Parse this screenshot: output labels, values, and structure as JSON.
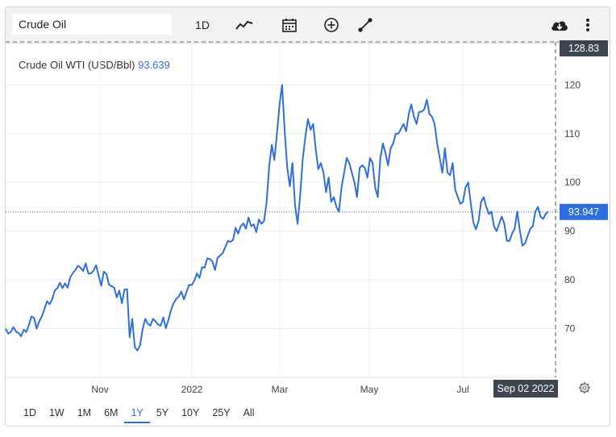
{
  "toolbar": {
    "symbol_value": "Crude Oil",
    "interval_label": "1D",
    "icons": [
      "line-chart-icon",
      "calendar-icon",
      "add-circle-icon",
      "draw-line-icon",
      "cloud-download-icon",
      "more-vertical-icon"
    ]
  },
  "title": {
    "name": "Crude Oil WTI (USD/Bbl)",
    "value": "93.639"
  },
  "crosshair": {
    "top_value": "128.83",
    "last_value": "93.947",
    "date_label": "Sep 02 2022"
  },
  "ranges": [
    {
      "label": "1D",
      "active": false
    },
    {
      "label": "1W",
      "active": false
    },
    {
      "label": "1M",
      "active": false
    },
    {
      "label": "6M",
      "active": false
    },
    {
      "label": "1Y",
      "active": true
    },
    {
      "label": "5Y",
      "active": false
    },
    {
      "label": "10Y",
      "active": false
    },
    {
      "label": "25Y",
      "active": false
    },
    {
      "label": "All",
      "active": false
    }
  ],
  "colors": {
    "line": "#2f6ee0",
    "badge": "#2f6ee0",
    "date_badge": "#3d4452"
  },
  "chart_data": {
    "type": "line",
    "title": "Crude Oil WTI (USD/Bbl)",
    "xlabel": "",
    "ylabel": "",
    "x_tick_labels": [
      "Nov",
      "2022",
      "Mar",
      "May",
      "Jul"
    ],
    "y_ticks": [
      70,
      80,
      90,
      100,
      110,
      120
    ],
    "ylim": [
      60,
      128.83
    ],
    "grid": true,
    "series": [
      {
        "values": [
          70.0,
          69.0,
          69.3,
          70.3,
          69.4,
          69.1,
          68.4,
          69.8,
          69.3,
          70.7,
          72.5,
          72.2,
          70.0,
          71.5,
          72.5,
          74.0,
          75.6,
          75.0,
          76.0,
          77.8,
          78.3,
          79.4,
          78.3,
          79.3,
          78.4,
          80.5,
          81.4,
          82.0,
          82.9,
          82.5,
          81.8,
          83.4,
          81.3,
          81.3,
          81.9,
          83.0,
          80.8,
          78.8,
          81.7,
          81.2,
          79.0,
          78.7,
          78.4,
          76.4,
          77.8,
          75.2,
          78.0,
          78.1,
          68.2,
          72.0,
          66.2,
          65.5,
          66.5,
          69.9,
          72.0,
          71.0,
          70.6,
          72.0,
          71.5,
          70.8,
          70.6,
          72.3,
          70.1,
          71.8,
          73.8,
          75.2,
          76.1,
          76.6,
          77.6,
          76.0,
          77.5,
          79.0,
          78.9,
          79.8,
          81.3,
          80.4,
          82.6,
          82.5,
          84.4,
          84.3,
          83.8,
          82.0,
          84.5,
          85.0,
          85.5,
          86.7,
          88.0,
          87.8,
          88.2,
          90.7,
          89.5,
          91.0,
          91.6,
          90.5,
          92.8,
          91.0,
          91.4,
          89.8,
          92.4,
          91.5,
          92.1,
          96.0,
          103.4,
          107.7,
          104.6,
          110.0,
          116.0,
          120.0,
          110.5,
          103.0,
          99.2,
          104.0,
          95.4,
          91.5,
          97.4,
          104.8,
          109.5,
          113.0,
          110.8,
          112.0,
          106.8,
          102.7,
          104.0,
          102.0,
          98.0,
          101.0,
          96.0,
          97.0,
          95.0,
          94.0,
          99.0,
          102.0,
          105.0,
          104.0,
          102.0,
          100.0,
          97.0,
          103.0,
          103.5,
          103.0,
          101.0,
          105.0,
          104.0,
          99.0,
          97.0,
          105.0,
          108.0,
          106.0,
          103.5,
          107.0,
          108.0,
          110.0,
          110.0,
          111.0,
          112.0,
          110.5,
          114.0,
          116.0,
          113.5,
          112.0,
          114.5,
          114.5,
          115.0,
          117.0,
          114.0,
          113.5,
          112.0,
          108.0,
          105.0,
          102.0,
          107.0,
          102.0,
          101.5,
          104.0,
          98.5,
          97.0,
          95.6,
          96.0,
          99.0,
          100.0,
          95.7,
          91.8,
          90.4,
          92.0,
          96.0,
          97.0,
          95.0,
          93.5,
          94.0,
          91.0,
          90.0,
          91.5,
          93.0,
          91.5,
          88.0,
          88.0,
          89.5,
          90.5,
          94.0,
          90.2,
          87.0,
          87.5,
          89.0,
          90.5,
          91.0,
          94.0,
          95.0,
          93.0,
          92.5,
          93.5,
          94.0
        ]
      }
    ]
  }
}
